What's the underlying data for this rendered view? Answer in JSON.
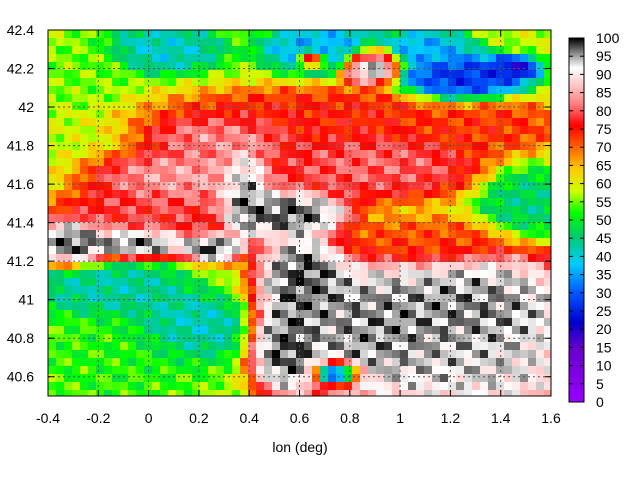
{
  "chart_data": {
    "type": "heatmap",
    "title": "",
    "xlabel": "lon (deg)",
    "ylabel": "",
    "xlim": [
      -0.4,
      1.6
    ],
    "ylim": [
      40.5,
      42.4
    ],
    "x_ticks": [
      "-0.4",
      "-0.2",
      "0",
      "0.2",
      "0.4",
      "0.6",
      "0.8",
      "1",
      "1.2",
      "1.4",
      "1.6"
    ],
    "x_tick_values": [
      -0.4,
      -0.2,
      0,
      0.2,
      0.4,
      0.6,
      0.8,
      1.0,
      1.2,
      1.4,
      1.6
    ],
    "y_ticks": [
      "40.6",
      "40.8",
      "41",
      "41.2",
      "41.4",
      "41.6",
      "41.8",
      "42",
      "42.2",
      "42.4"
    ],
    "y_tick_values": [
      40.6,
      40.8,
      41.0,
      41.2,
      41.4,
      41.6,
      41.8,
      42.0,
      42.2,
      42.4
    ],
    "grid": true,
    "colorbar": {
      "range": [
        0,
        100
      ],
      "ticks": [
        "0",
        "5",
        "10",
        "15",
        "20",
        "25",
        "30",
        "35",
        "40",
        "45",
        "50",
        "55",
        "60",
        "65",
        "70",
        "75",
        "80",
        "85",
        "90",
        "95",
        "100"
      ],
      "tick_values": [
        0,
        5,
        10,
        15,
        20,
        25,
        30,
        35,
        40,
        45,
        50,
        55,
        60,
        65,
        70,
        75,
        80,
        85,
        90,
        95,
        100
      ],
      "stops": [
        {
          "value": 0,
          "color": "#9900ff"
        },
        {
          "value": 15,
          "color": "#6600cc"
        },
        {
          "value": 22,
          "color": "#0000cc"
        },
        {
          "value": 30,
          "color": "#0055ff"
        },
        {
          "value": 38,
          "color": "#00ccff"
        },
        {
          "value": 46,
          "color": "#00cc66"
        },
        {
          "value": 52,
          "color": "#00ff00"
        },
        {
          "value": 58,
          "color": "#ccff00"
        },
        {
          "value": 64,
          "color": "#ffcc00"
        },
        {
          "value": 70,
          "color": "#ff6600"
        },
        {
          "value": 76,
          "color": "#ff0000"
        },
        {
          "value": 82,
          "color": "#ff8080"
        },
        {
          "value": 88,
          "color": "#ffd0d0"
        },
        {
          "value": 92,
          "color": "#ffffff"
        },
        {
          "value": 96,
          "color": "#888888"
        },
        {
          "value": 100,
          "color": "#000000"
        }
      ]
    },
    "field": {
      "background_value": 58,
      "features": [
        {
          "lon": -0.3,
          "lat": 41.3,
          "rx": 0.12,
          "ry": 0.1,
          "value": 100
        },
        {
          "lon": -0.05,
          "lat": 41.3,
          "rx": 0.18,
          "ry": 0.07,
          "value": 100
        },
        {
          "lon": 0.25,
          "lat": 41.27,
          "rx": 0.1,
          "ry": 0.06,
          "value": 100
        },
        {
          "lon": 0.38,
          "lat": 41.55,
          "rx": 0.08,
          "ry": 0.2,
          "value": 100
        },
        {
          "lon": 0.55,
          "lat": 41.45,
          "rx": 0.2,
          "ry": 0.1,
          "value": 100
        },
        {
          "lon": 0.62,
          "lat": 41.1,
          "rx": 0.15,
          "ry": 0.22,
          "value": 100
        },
        {
          "lon": 0.55,
          "lat": 40.75,
          "rx": 0.12,
          "ry": 0.2,
          "value": 100
        },
        {
          "lon": 0.9,
          "lat": 40.85,
          "rx": 0.3,
          "ry": 0.3,
          "value": 98
        },
        {
          "lon": 1.3,
          "lat": 40.95,
          "rx": 0.35,
          "ry": 0.25,
          "value": 98
        },
        {
          "lon": 1.3,
          "lat": 40.65,
          "rx": 0.35,
          "ry": 0.2,
          "value": 95
        },
        {
          "lon": 0.88,
          "lat": 42.22,
          "rx": 0.1,
          "ry": 0.08,
          "value": 100
        },
        {
          "lon": 0.65,
          "lat": 42.25,
          "rx": 0.05,
          "ry": 0.04,
          "value": 100
        },
        {
          "lon": 0.15,
          "lat": 41.63,
          "rx": 0.3,
          "ry": 0.12,
          "value": 86
        },
        {
          "lon": 0.3,
          "lat": 41.85,
          "rx": 0.25,
          "ry": 0.1,
          "value": 85
        },
        {
          "lon": 0.9,
          "lat": 41.7,
          "rx": 0.35,
          "ry": 0.15,
          "value": 82
        },
        {
          "lon": 0.0,
          "lat": 41.45,
          "rx": 0.3,
          "ry": 0.12,
          "value": 80
        },
        {
          "lon": 0.65,
          "lat": 41.95,
          "rx": 0.5,
          "ry": 0.12,
          "value": 76
        },
        {
          "lon": 1.35,
          "lat": 41.9,
          "rx": 0.25,
          "ry": 0.12,
          "value": 74
        },
        {
          "lon": 1.1,
          "lat": 41.3,
          "rx": 0.3,
          "ry": 0.1,
          "value": 72
        },
        {
          "lon": -0.15,
          "lat": 41.05,
          "rx": 0.25,
          "ry": 0.12,
          "value": 42
        },
        {
          "lon": -0.1,
          "lat": 40.7,
          "rx": 0.3,
          "ry": 0.2,
          "value": 52
        },
        {
          "lon": 0.15,
          "lat": 40.85,
          "rx": 0.2,
          "ry": 0.15,
          "value": 40
        },
        {
          "lon": -0.25,
          "lat": 42.2,
          "rx": 0.15,
          "ry": 0.15,
          "value": 55
        },
        {
          "lon": 0.05,
          "lat": 42.3,
          "rx": 0.2,
          "ry": 0.1,
          "value": 40
        },
        {
          "lon": 0.7,
          "lat": 42.3,
          "rx": 0.2,
          "ry": 0.1,
          "value": 35
        },
        {
          "lon": 1.25,
          "lat": 42.15,
          "rx": 0.2,
          "ry": 0.1,
          "value": 25
        },
        {
          "lon": 1.1,
          "lat": 42.3,
          "rx": 0.15,
          "ry": 0.08,
          "value": 35
        },
        {
          "lon": 1.45,
          "lat": 42.2,
          "rx": 0.08,
          "ry": 0.05,
          "value": 20
        },
        {
          "lon": 1.5,
          "lat": 41.5,
          "rx": 0.15,
          "ry": 0.15,
          "value": 45
        },
        {
          "lon": 0.75,
          "lat": 40.62,
          "rx": 0.08,
          "ry": 0.05,
          "value": 10
        }
      ]
    }
  }
}
